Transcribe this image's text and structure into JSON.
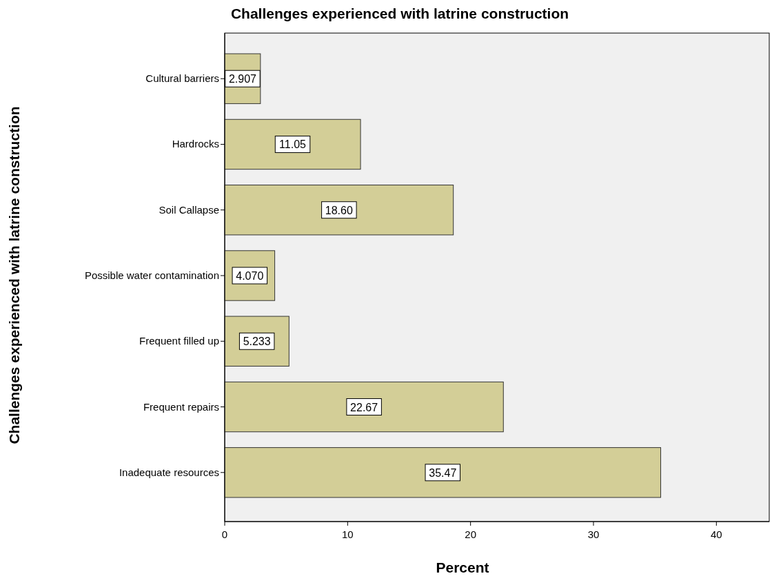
{
  "chart_data": {
    "type": "bar",
    "orientation": "horizontal",
    "title": "Challenges experienced with latrine construction",
    "xlabel": "Percent",
    "ylabel": "Challenges experienced with latrine construction",
    "categories": [
      "Cultural barriers",
      "Hardrocks",
      "Soil Callapse",
      "Possible water contamination",
      "Frequent filled up",
      "Frequent repairs",
      "Inadequate resources"
    ],
    "values": [
      2.907,
      11.05,
      18.6,
      4.07,
      5.233,
      22.67,
      35.47
    ],
    "value_labels": [
      "2.907",
      "11.05",
      "18.60",
      "4.070",
      "5.233",
      "22.67",
      "35.47"
    ],
    "color": "#d3ce97",
    "xlim": [
      0,
      44.3
    ],
    "xticks": [
      0,
      10,
      20,
      30,
      40
    ],
    "grid": false
  }
}
